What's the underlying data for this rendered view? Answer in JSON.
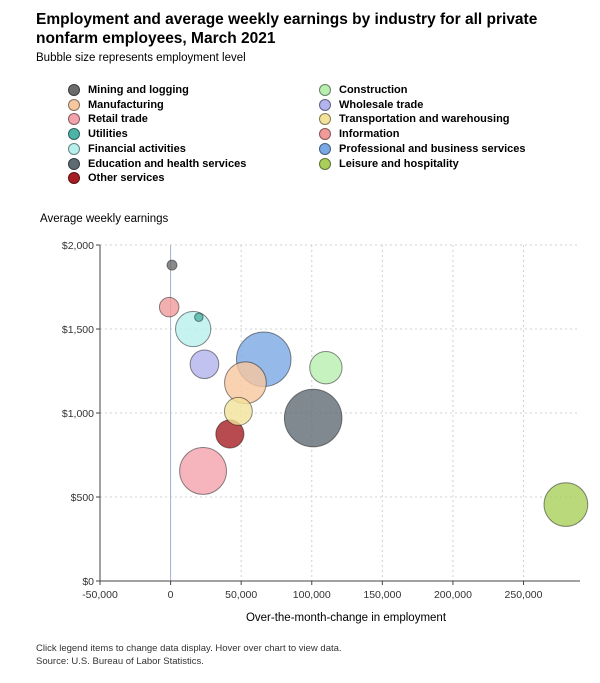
{
  "title": "Employment and average weekly earnings by industry for all private nonfarm employees, March 2021",
  "subtitle": "Bubble size represents employment level",
  "footnote": "Click legend items to change data display. Hover over chart to view data.",
  "source": "Source: U.S. Bureau of Labor Statistics.",
  "chart_data": {
    "type": "scatter",
    "bubble": true,
    "xlabel": "Over-the-month-change in employment",
    "ylabel": "Average weekly earnings",
    "xlim": [
      -50000,
      290000
    ],
    "ylim": [
      0,
      2000
    ],
    "x_ticks": [
      -50000,
      0,
      50000,
      100000,
      150000,
      200000,
      250000
    ],
    "x_tick_labels": [
      "-50,000",
      "0",
      "50,000",
      "100,000",
      "150,000",
      "200,000",
      "250,000"
    ],
    "y_ticks": [
      0,
      500,
      1000,
      1500,
      2000
    ],
    "y_tick_labels": [
      "$0",
      "$500",
      "$1,000",
      "$1,500",
      "$2,000"
    ],
    "grid": true,
    "legend_position": "top",
    "series": [
      {
        "name": "Mining and logging",
        "x": 1000,
        "y": 1880,
        "size": 0.7,
        "color": "#6b6b6b"
      },
      {
        "name": "Construction",
        "x": 110000,
        "y": 1270,
        "size": 7.4,
        "color": "#b8efb0"
      },
      {
        "name": "Manufacturing",
        "x": 53000,
        "y": 1180,
        "size": 12.3,
        "color": "#f7c79f"
      },
      {
        "name": "Wholesale trade",
        "x": 24000,
        "y": 1290,
        "size": 5.8,
        "color": "#b3b3ee"
      },
      {
        "name": "Retail trade",
        "x": 23000,
        "y": 655,
        "size": 15.5,
        "color": "#f4a3ad"
      },
      {
        "name": "Transportation and warehousing",
        "x": 48000,
        "y": 1010,
        "size": 5.5,
        "color": "#f3e29a"
      },
      {
        "name": "Utilities",
        "x": 20000,
        "y": 1570,
        "size": 0.5,
        "color": "#4db3a6"
      },
      {
        "name": "Information",
        "x": -1000,
        "y": 1630,
        "size": 2.7,
        "color": "#f09a9a"
      },
      {
        "name": "Financial activities",
        "x": 16000,
        "y": 1500,
        "size": 8.8,
        "color": "#b8efec"
      },
      {
        "name": "Professional and business services",
        "x": 66000,
        "y": 1320,
        "size": 21.0,
        "color": "#7aa8e4"
      },
      {
        "name": "Education and health services",
        "x": 101000,
        "y": 970,
        "size": 23.4,
        "color": "#5f6b73"
      },
      {
        "name": "Leisure and hospitality",
        "x": 280000,
        "y": 455,
        "size": 13.5,
        "color": "#a9cf5a"
      },
      {
        "name": "Other services",
        "x": 42000,
        "y": 875,
        "size": 5.6,
        "color": "#a61e23"
      }
    ]
  },
  "legend": [
    {
      "name": "Mining and logging",
      "color": "#6b6b6b"
    },
    {
      "name": "Manufacturing",
      "color": "#f7c79f"
    },
    {
      "name": "Retail trade",
      "color": "#f4a3ad"
    },
    {
      "name": "Utilities",
      "color": "#4db3a6"
    },
    {
      "name": "Financial activities",
      "color": "#b8efec"
    },
    {
      "name": "Education and health services",
      "color": "#5f6b73"
    },
    {
      "name": "Other services",
      "color": "#a61e23"
    },
    {
      "name": "Construction",
      "color": "#b8efb0"
    },
    {
      "name": "Wholesale trade",
      "color": "#b3b3ee"
    },
    {
      "name": "Transportation and warehousing",
      "color": "#f3e29a"
    },
    {
      "name": "Information",
      "color": "#f09a9a"
    },
    {
      "name": "Professional and business services",
      "color": "#7aa8e4"
    },
    {
      "name": "Leisure and hospitality",
      "color": "#a9cf5a"
    }
  ]
}
